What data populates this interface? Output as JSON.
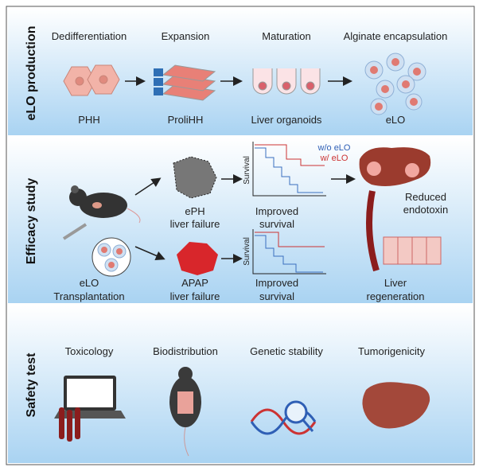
{
  "production": {
    "label": "eLO production",
    "steps": [
      {
        "title": "Dedifferentiation",
        "caption": "PHH"
      },
      {
        "title": "Expansion",
        "caption": "ProliHH"
      },
      {
        "title": "Maturation",
        "caption": "Liver organoids"
      },
      {
        "title": "Alginate encapsulation",
        "caption": "eLO"
      }
    ]
  },
  "efficacy": {
    "label": "Efficacy study",
    "transplant": [
      "eLO",
      "Transplantation"
    ],
    "eph": [
      "ePH",
      "liver failure"
    ],
    "apap": [
      "APAP",
      "liver failure"
    ],
    "survival_eph": [
      "Improved",
      "survival"
    ],
    "survival_apap": [
      "Improved",
      "survival"
    ],
    "axis_label": "Survival",
    "legend": [
      "w/o eLO",
      "w/ eLO"
    ],
    "endotoxin": [
      "Reduced",
      "endotoxin"
    ],
    "regeneration": [
      "Liver",
      "regeneration"
    ]
  },
  "safety": {
    "label": "Safety test",
    "tests": [
      "Toxicology",
      "Biodistribution",
      "Genetic stability",
      "Tumorigenicity"
    ]
  }
}
